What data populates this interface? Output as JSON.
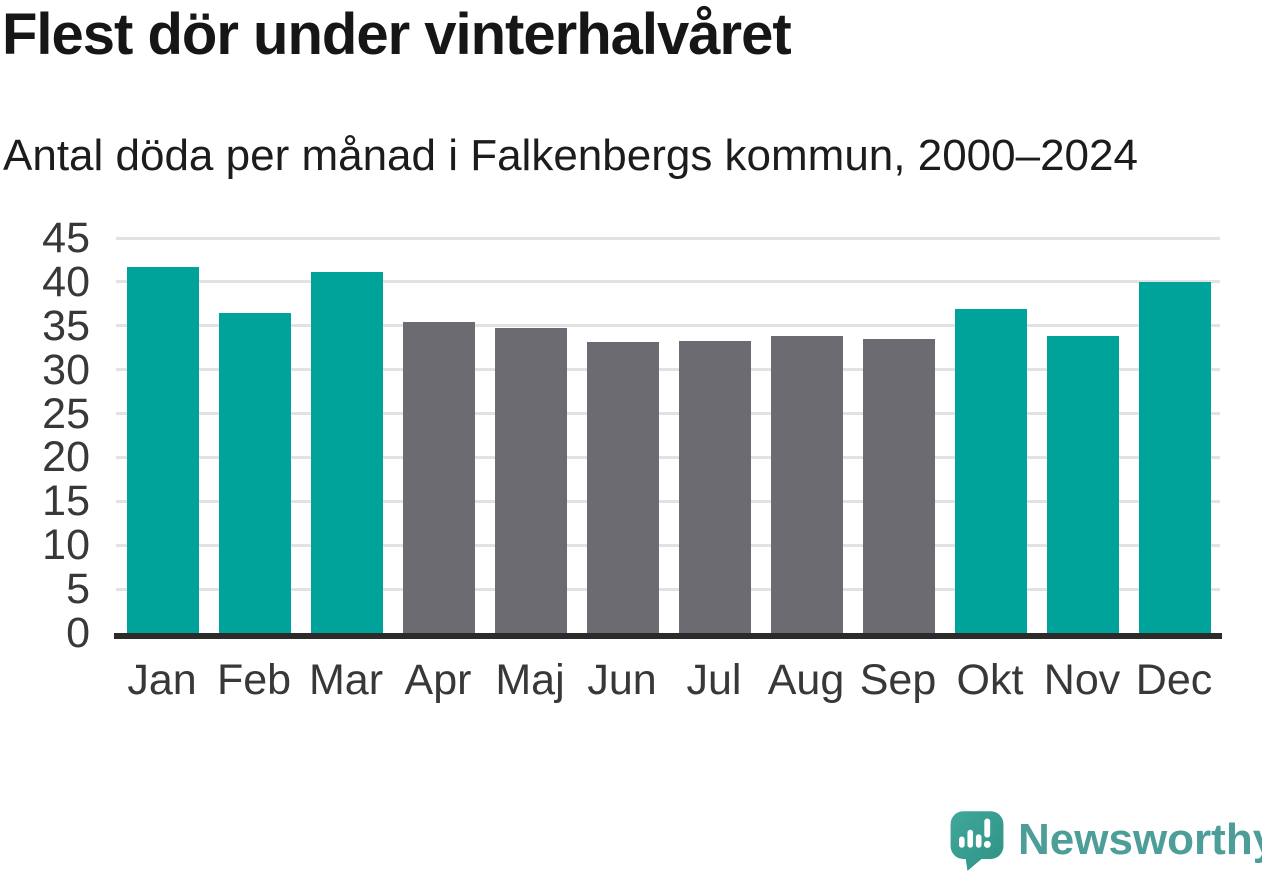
{
  "header": {
    "title": "Flest dör under vinterhalvåret",
    "subtitle": "Antal döda per månad i Falkenbergs kommun, 2000–2024"
  },
  "chart_data": {
    "type": "bar",
    "title": "Flest dör under vinterhalvåret",
    "subtitle": "Antal döda per månad i Falkenbergs kommun, 2000–2024",
    "categories": [
      "Jan",
      "Feb",
      "Mar",
      "Apr",
      "Maj",
      "Jun",
      "Jul",
      "Aug",
      "Sep",
      "Okt",
      "Nov",
      "Dec"
    ],
    "values": [
      41.7,
      36.5,
      41.1,
      35.4,
      34.7,
      33.1,
      33.3,
      33.8,
      33.5,
      36.9,
      33.8,
      40.0
    ],
    "bar_color_keys": [
      "winter",
      "winter",
      "winter",
      "summer",
      "summer",
      "summer",
      "summer",
      "summer",
      "summer",
      "winter",
      "winter",
      "winter"
    ],
    "palette": {
      "winter": "#00a39a",
      "summer": "#6c6b71"
    },
    "xlabel": "",
    "ylabel": "",
    "ylim": [
      0,
      45
    ],
    "y_ticks": [
      0,
      5,
      10,
      15,
      20,
      25,
      30,
      35,
      40,
      45
    ],
    "grid": true,
    "legend": "none",
    "gridline_color": "#e2e2e2",
    "axis_color": "#2b2b2b"
  },
  "footer": {
    "brand": "Newsworthy",
    "brand_color": "#4d9d98",
    "logo": "newsworthy-speech-bubble-chart-icon",
    "logo_teal_light": "#41a89b",
    "logo_teal_dark": "#2f9186"
  }
}
